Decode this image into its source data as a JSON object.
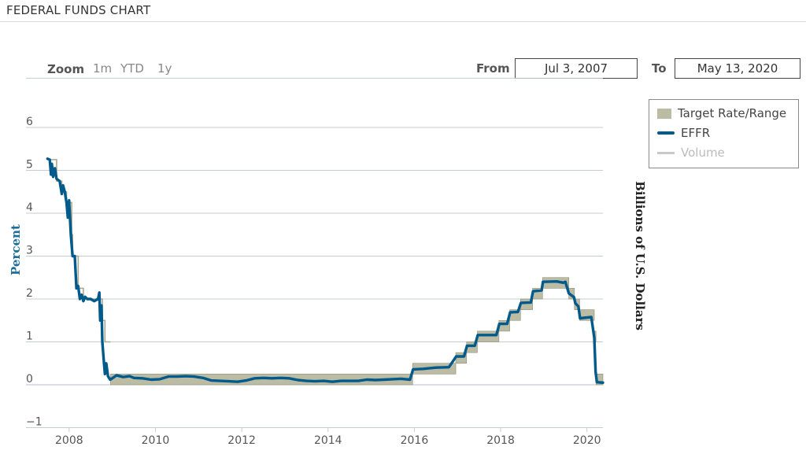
{
  "header": {
    "title": "FEDERAL FUNDS CHART"
  },
  "zoom": {
    "label": "Zoom",
    "buttons": [
      "1m",
      "YTD",
      "1y"
    ]
  },
  "range": {
    "from_label": "From",
    "from_value": "Jul 3, 2007",
    "to_label": "To",
    "to_value": "May 13, 2020"
  },
  "legend": {
    "items": [
      {
        "label": "Target Rate/Range",
        "color": "#bcbca4",
        "swatch": "box"
      },
      {
        "label": "EFFR",
        "color": "#005a8c",
        "swatch": "line"
      },
      {
        "label": "Volume",
        "color": "#c9c9c9",
        "swatch": "line-disabled"
      }
    ]
  },
  "chart_data": {
    "type": "line",
    "title": "FEDERAL FUNDS CHART",
    "ylabel": "Percent",
    "ylabel_right": "Billions of U.S. Dollars",
    "ylim": [
      -1,
      6.8
    ],
    "xlim": [
      2007.0,
      2020.37
    ],
    "y_ticks": [
      -1,
      0,
      1,
      2,
      3,
      4,
      5,
      6
    ],
    "y_tick_labels": [
      "−1",
      "0",
      "1",
      "2",
      "3",
      "4",
      "5",
      "6"
    ],
    "x_ticks": [
      2008,
      2010,
      2012,
      2014,
      2016,
      2018,
      2020
    ],
    "x_tick_labels": [
      "2008",
      "2010",
      "2012",
      "2014",
      "2016",
      "2018",
      "2020"
    ],
    "grid": true,
    "legend_position": "top-right",
    "target_point": [
      [
        2007.5,
        5.25
      ],
      [
        2007.71,
        4.75
      ],
      [
        2007.83,
        4.5
      ],
      [
        2007.94,
        4.25
      ],
      [
        2008.06,
        3.5
      ],
      [
        2008.08,
        3.0
      ],
      [
        2008.21,
        2.25
      ],
      [
        2008.33,
        2.0
      ],
      [
        2008.77,
        1.5
      ],
      [
        2008.83,
        1.0
      ],
      [
        2008.96,
        1.0
      ]
    ],
    "target_range": [
      [
        2008.96,
        0.0,
        0.25
      ],
      [
        2015.96,
        0.25,
        0.5
      ],
      [
        2016.96,
        0.5,
        0.75
      ],
      [
        2017.21,
        0.75,
        1.0
      ],
      [
        2017.46,
        1.0,
        1.25
      ],
      [
        2017.96,
        1.25,
        1.5
      ],
      [
        2018.21,
        1.5,
        1.75
      ],
      [
        2018.46,
        1.75,
        2.0
      ],
      [
        2018.74,
        2.0,
        2.25
      ],
      [
        2018.97,
        2.25,
        2.5
      ],
      [
        2019.58,
        2.0,
        2.25
      ],
      [
        2019.71,
        1.75,
        2.0
      ],
      [
        2019.83,
        1.5,
        1.75
      ],
      [
        2020.17,
        1.0,
        1.25
      ],
      [
        2020.21,
        0.0,
        0.25
      ],
      [
        2020.37,
        0.0,
        0.25
      ]
    ],
    "series": [
      {
        "name": "EFFR",
        "points": [
          [
            2007.5,
            5.27
          ],
          [
            2007.55,
            5.25
          ],
          [
            2007.58,
            4.9
          ],
          [
            2007.6,
            5.15
          ],
          [
            2007.63,
            4.85
          ],
          [
            2007.67,
            5.05
          ],
          [
            2007.71,
            4.8
          ],
          [
            2007.78,
            4.75
          ],
          [
            2007.83,
            4.45
          ],
          [
            2007.86,
            4.65
          ],
          [
            2007.9,
            4.5
          ],
          [
            2007.94,
            4.25
          ],
          [
            2007.97,
            3.9
          ],
          [
            2008.0,
            4.3
          ],
          [
            2008.04,
            3.5
          ],
          [
            2008.08,
            3.0
          ],
          [
            2008.13,
            3.0
          ],
          [
            2008.17,
            2.25
          ],
          [
            2008.21,
            2.3
          ],
          [
            2008.25,
            2.0
          ],
          [
            2008.29,
            2.1
          ],
          [
            2008.33,
            1.95
          ],
          [
            2008.37,
            2.05
          ],
          [
            2008.42,
            2.0
          ],
          [
            2008.5,
            2.0
          ],
          [
            2008.58,
            1.95
          ],
          [
            2008.67,
            2.0
          ],
          [
            2008.7,
            2.15
          ],
          [
            2008.72,
            1.5
          ],
          [
            2008.75,
            1.85
          ],
          [
            2008.77,
            1.0
          ],
          [
            2008.8,
            0.6
          ],
          [
            2008.83,
            0.25
          ],
          [
            2008.86,
            0.5
          ],
          [
            2008.9,
            0.2
          ],
          [
            2008.95,
            0.12
          ],
          [
            2009.0,
            0.15
          ],
          [
            2009.1,
            0.22
          ],
          [
            2009.25,
            0.18
          ],
          [
            2009.4,
            0.2
          ],
          [
            2009.5,
            0.16
          ],
          [
            2009.7,
            0.15
          ],
          [
            2009.9,
            0.12
          ],
          [
            2010.1,
            0.13
          ],
          [
            2010.3,
            0.19
          ],
          [
            2010.5,
            0.19
          ],
          [
            2010.7,
            0.2
          ],
          [
            2010.9,
            0.19
          ],
          [
            2011.1,
            0.16
          ],
          [
            2011.3,
            0.1
          ],
          [
            2011.5,
            0.09
          ],
          [
            2011.7,
            0.08
          ],
          [
            2011.9,
            0.07
          ],
          [
            2012.1,
            0.1
          ],
          [
            2012.3,
            0.15
          ],
          [
            2012.5,
            0.16
          ],
          [
            2012.7,
            0.15
          ],
          [
            2012.9,
            0.16
          ],
          [
            2013.1,
            0.15
          ],
          [
            2013.3,
            0.11
          ],
          [
            2013.5,
            0.09
          ],
          [
            2013.7,
            0.08
          ],
          [
            2013.9,
            0.09
          ],
          [
            2014.1,
            0.07
          ],
          [
            2014.3,
            0.09
          ],
          [
            2014.5,
            0.09
          ],
          [
            2014.7,
            0.09
          ],
          [
            2014.9,
            0.12
          ],
          [
            2015.1,
            0.11
          ],
          [
            2015.3,
            0.12
          ],
          [
            2015.5,
            0.13
          ],
          [
            2015.7,
            0.14
          ],
          [
            2015.9,
            0.12
          ],
          [
            2015.97,
            0.36
          ],
          [
            2016.2,
            0.37
          ],
          [
            2016.5,
            0.4
          ],
          [
            2016.8,
            0.41
          ],
          [
            2016.97,
            0.66
          ],
          [
            2017.15,
            0.66
          ],
          [
            2017.22,
            0.91
          ],
          [
            2017.4,
            0.91
          ],
          [
            2017.47,
            1.16
          ],
          [
            2017.9,
            1.16
          ],
          [
            2017.97,
            1.42
          ],
          [
            2018.15,
            1.42
          ],
          [
            2018.22,
            1.69
          ],
          [
            2018.4,
            1.7
          ],
          [
            2018.47,
            1.91
          ],
          [
            2018.7,
            1.92
          ],
          [
            2018.75,
            2.18
          ],
          [
            2018.95,
            2.2
          ],
          [
            2018.98,
            2.4
          ],
          [
            2019.3,
            2.41
          ],
          [
            2019.45,
            2.38
          ],
          [
            2019.5,
            2.4
          ],
          [
            2019.58,
            2.13
          ],
          [
            2019.7,
            2.04
          ],
          [
            2019.73,
            1.9
          ],
          [
            2019.8,
            1.83
          ],
          [
            2019.84,
            1.55
          ],
          [
            2020.1,
            1.58
          ],
          [
            2020.17,
            1.1
          ],
          [
            2020.2,
            0.3
          ],
          [
            2020.23,
            0.06
          ],
          [
            2020.37,
            0.05
          ]
        ]
      }
    ]
  }
}
